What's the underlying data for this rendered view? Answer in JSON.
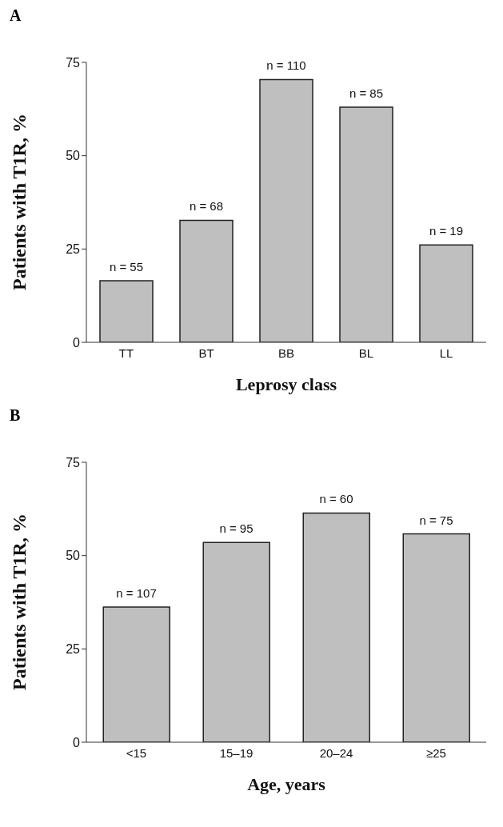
{
  "chart_data": [
    {
      "type": "bar",
      "title": "A",
      "xlabel": "Leprosy class",
      "ylabel": "Patients with T1R, %",
      "categories": [
        "TT",
        "BT",
        "BB",
        "BL",
        "LL"
      ],
      "values": [
        16.5,
        32.7,
        70.4,
        63.0,
        26.1
      ],
      "color": "#bfbfbf",
      "ylim": [
        0,
        75
      ],
      "yticks": [
        0,
        25,
        50,
        75
      ],
      "annotations": [
        {
          "text": "n = 55",
          "x": "TT",
          "y": 16.5
        },
        {
          "text": "n = 68",
          "x": "BT",
          "y": 32.7
        },
        {
          "text": "n = 110",
          "x": "BB",
          "y": 70.4
        },
        {
          "text": "n = 85",
          "x": "BL",
          "y": 63.0
        },
        {
          "text": "n = 19",
          "x": "LL",
          "y": 26.1
        }
      ]
    },
    {
      "type": "bar",
      "title": "B",
      "xlabel": "Age, years",
      "ylabel": "Patients with T1R, %",
      "categories": [
        "<15",
        "15–19",
        "20–24",
        "≥25"
      ],
      "values": [
        36.2,
        53.5,
        61.4,
        55.8
      ],
      "color": "#bfbfbf",
      "ylim": [
        0,
        75
      ],
      "yticks": [
        0,
        25,
        50,
        75
      ],
      "annotations": [
        {
          "text": "n = 107",
          "x": "<15",
          "y": 36.2
        },
        {
          "text": "n = 95",
          "x": "15–19",
          "y": 53.5
        },
        {
          "text": "n = 60",
          "x": "20–24",
          "y": 61.4
        },
        {
          "text": "n = 75",
          "x": "≥25",
          "y": 55.8
        }
      ]
    }
  ]
}
